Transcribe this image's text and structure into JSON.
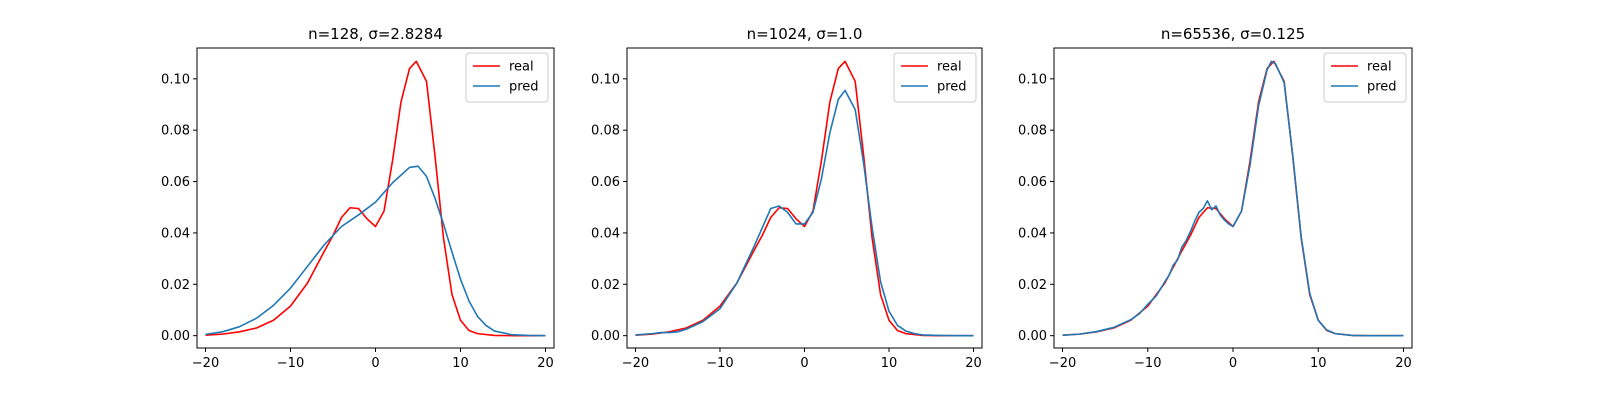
{
  "colors": {
    "real": "#ff0000",
    "pred": "#1f77b4"
  },
  "chart_data": [
    {
      "type": "line",
      "title": "n=128, σ=2.8284",
      "xlim": [
        -21,
        21
      ],
      "ylim": [
        -0.0048,
        0.112
      ],
      "xticks": [
        -20,
        -10,
        0,
        10,
        20
      ],
      "xtick_labels": [
        "−20",
        "−10",
        "0",
        "10",
        "20"
      ],
      "yticks": [
        0.0,
        0.02,
        0.04,
        0.06,
        0.08,
        0.1
      ],
      "ytick_labels": [
        "0.00",
        "0.02",
        "0.04",
        "0.06",
        "0.08",
        "0.10"
      ],
      "legend": "top-right",
      "series": [
        {
          "name": "real",
          "color": "#ff0000",
          "x": [
            -20,
            -18,
            -16,
            -14,
            -12,
            -10,
            -8,
            -6,
            -5,
            -4,
            -3,
            -2,
            -1,
            0,
            1,
            2,
            3,
            4,
            4.8,
            6,
            7,
            8,
            9,
            10,
            11,
            12,
            14,
            16,
            18,
            20
          ],
          "y": [
            0.0002,
            0.0006,
            0.0015,
            0.003,
            0.006,
            0.0115,
            0.0205,
            0.033,
            0.039,
            0.046,
            0.0498,
            0.0495,
            0.0455,
            0.0425,
            0.0485,
            0.068,
            0.091,
            0.104,
            0.1068,
            0.099,
            0.07,
            0.038,
            0.016,
            0.006,
            0.002,
            0.0008,
            0.0001,
            0.0,
            0.0,
            0.0
          ]
        },
        {
          "name": "pred",
          "color": "#1f77b4",
          "x": [
            -20,
            -18,
            -16,
            -14,
            -12,
            -10,
            -8,
            -6,
            -4,
            -2,
            0,
            2,
            4,
            5,
            6,
            7,
            8,
            9,
            10,
            11,
            12,
            13,
            14,
            16,
            18,
            20
          ],
          "y": [
            0.0005,
            0.0015,
            0.0035,
            0.0068,
            0.0118,
            0.0185,
            0.027,
            0.0355,
            0.0425,
            0.047,
            0.052,
            0.0595,
            0.0655,
            0.066,
            0.062,
            0.0535,
            0.0435,
            0.0325,
            0.022,
            0.0135,
            0.0075,
            0.004,
            0.0018,
            0.0004,
            0.0001,
            0.0
          ]
        }
      ]
    },
    {
      "type": "line",
      "title": "n=1024, σ=1.0",
      "xlim": [
        -21,
        21
      ],
      "ylim": [
        -0.0048,
        0.112
      ],
      "xticks": [
        -20,
        -10,
        0,
        10,
        20
      ],
      "xtick_labels": [
        "−20",
        "−10",
        "0",
        "10",
        "20"
      ],
      "yticks": [
        0.0,
        0.02,
        0.04,
        0.06,
        0.08,
        0.1
      ],
      "ytick_labels": [
        "0.00",
        "0.02",
        "0.04",
        "0.06",
        "0.08",
        "0.10"
      ],
      "legend": "top-right",
      "series": [
        {
          "name": "real",
          "color": "#ff0000",
          "x": [
            -20,
            -18,
            -16,
            -14,
            -12,
            -10,
            -8,
            -6,
            -5,
            -4,
            -3,
            -2,
            -1,
            0,
            1,
            2,
            3,
            4,
            4.8,
            6,
            7,
            8,
            9,
            10,
            11,
            12,
            14,
            16,
            18,
            20
          ],
          "y": [
            0.0002,
            0.0006,
            0.0015,
            0.003,
            0.006,
            0.0115,
            0.0205,
            0.033,
            0.039,
            0.046,
            0.0498,
            0.0495,
            0.0455,
            0.0425,
            0.0485,
            0.068,
            0.091,
            0.104,
            0.1068,
            0.099,
            0.07,
            0.038,
            0.016,
            0.006,
            0.002,
            0.0008,
            0.0001,
            0.0,
            0.0,
            0.0
          ]
        },
        {
          "name": "pred",
          "color": "#1f77b4",
          "x": [
            -20,
            -18,
            -17,
            -16,
            -15,
            -14,
            -12,
            -10,
            -8,
            -6,
            -5,
            -4,
            -3,
            -2,
            -1,
            0,
            1,
            2,
            3,
            4,
            4.8,
            6,
            7,
            8,
            9,
            10,
            11,
            12,
            13,
            14,
            16,
            18,
            20
          ],
          "y": [
            0.0003,
            0.0008,
            0.0012,
            0.0012,
            0.0015,
            0.0025,
            0.0055,
            0.0105,
            0.0205,
            0.0345,
            0.042,
            0.0495,
            0.0505,
            0.048,
            0.0435,
            0.0435,
            0.048,
            0.061,
            0.079,
            0.092,
            0.0955,
            0.088,
            0.067,
            0.042,
            0.021,
            0.0095,
            0.004,
            0.0018,
            0.0008,
            0.0003,
            0.0001,
            0.0,
            0.0
          ]
        }
      ]
    },
    {
      "type": "line",
      "title": "n=65536, σ=0.125",
      "xlim": [
        -21,
        21
      ],
      "ylim": [
        -0.0048,
        0.112
      ],
      "xticks": [
        -20,
        -10,
        0,
        10,
        20
      ],
      "xtick_labels": [
        "−20",
        "−10",
        "0",
        "10",
        "20"
      ],
      "yticks": [
        0.0,
        0.02,
        0.04,
        0.06,
        0.08,
        0.1
      ],
      "ytick_labels": [
        "0.00",
        "0.02",
        "0.04",
        "0.06",
        "0.08",
        "0.10"
      ],
      "legend": "top-right",
      "series": [
        {
          "name": "real",
          "color": "#ff0000",
          "x": [
            -20,
            -18,
            -16,
            -14,
            -12,
            -10,
            -8,
            -6,
            -5,
            -4,
            -3,
            -2,
            -1,
            0,
            1,
            2,
            3,
            4,
            4.8,
            6,
            7,
            8,
            9,
            10,
            11,
            12,
            14,
            16,
            18,
            20
          ],
          "y": [
            0.0002,
            0.0006,
            0.0015,
            0.003,
            0.006,
            0.0115,
            0.0205,
            0.033,
            0.039,
            0.046,
            0.0498,
            0.0495,
            0.0455,
            0.0425,
            0.0485,
            0.068,
            0.091,
            0.104,
            0.1068,
            0.099,
            0.07,
            0.038,
            0.016,
            0.006,
            0.002,
            0.0008,
            0.0001,
            0.0,
            0.0,
            0.0
          ]
        },
        {
          "name": "pred",
          "color": "#1f77b4",
          "x": [
            -20,
            -18,
            -16,
            -14,
            -12,
            -11,
            -10,
            -9,
            -8,
            -7.5,
            -7,
            -6.5,
            -6,
            -5.5,
            -5,
            -4.5,
            -4,
            -3.5,
            -3,
            -2.5,
            -2,
            -1.5,
            -1,
            -0.5,
            0,
            0.5,
            1,
            2,
            3,
            4,
            4.5,
            5,
            6,
            7,
            8,
            9,
            10,
            11,
            12,
            14,
            16,
            18,
            20
          ],
          "y": [
            0.0002,
            0.0006,
            0.0016,
            0.0032,
            0.0062,
            0.0085,
            0.0122,
            0.0155,
            0.021,
            0.0235,
            0.0275,
            0.0295,
            0.0345,
            0.037,
            0.0405,
            0.0445,
            0.048,
            0.0495,
            0.0525,
            0.049,
            0.0505,
            0.047,
            0.045,
            0.0435,
            0.0425,
            0.0455,
            0.0485,
            0.0665,
            0.0895,
            0.1035,
            0.1068,
            0.1058,
            0.0985,
            0.0705,
            0.0385,
            0.0165,
            0.006,
            0.0022,
            0.0008,
            0.0001,
            0.0,
            0.0,
            0.0
          ]
        }
      ]
    }
  ]
}
